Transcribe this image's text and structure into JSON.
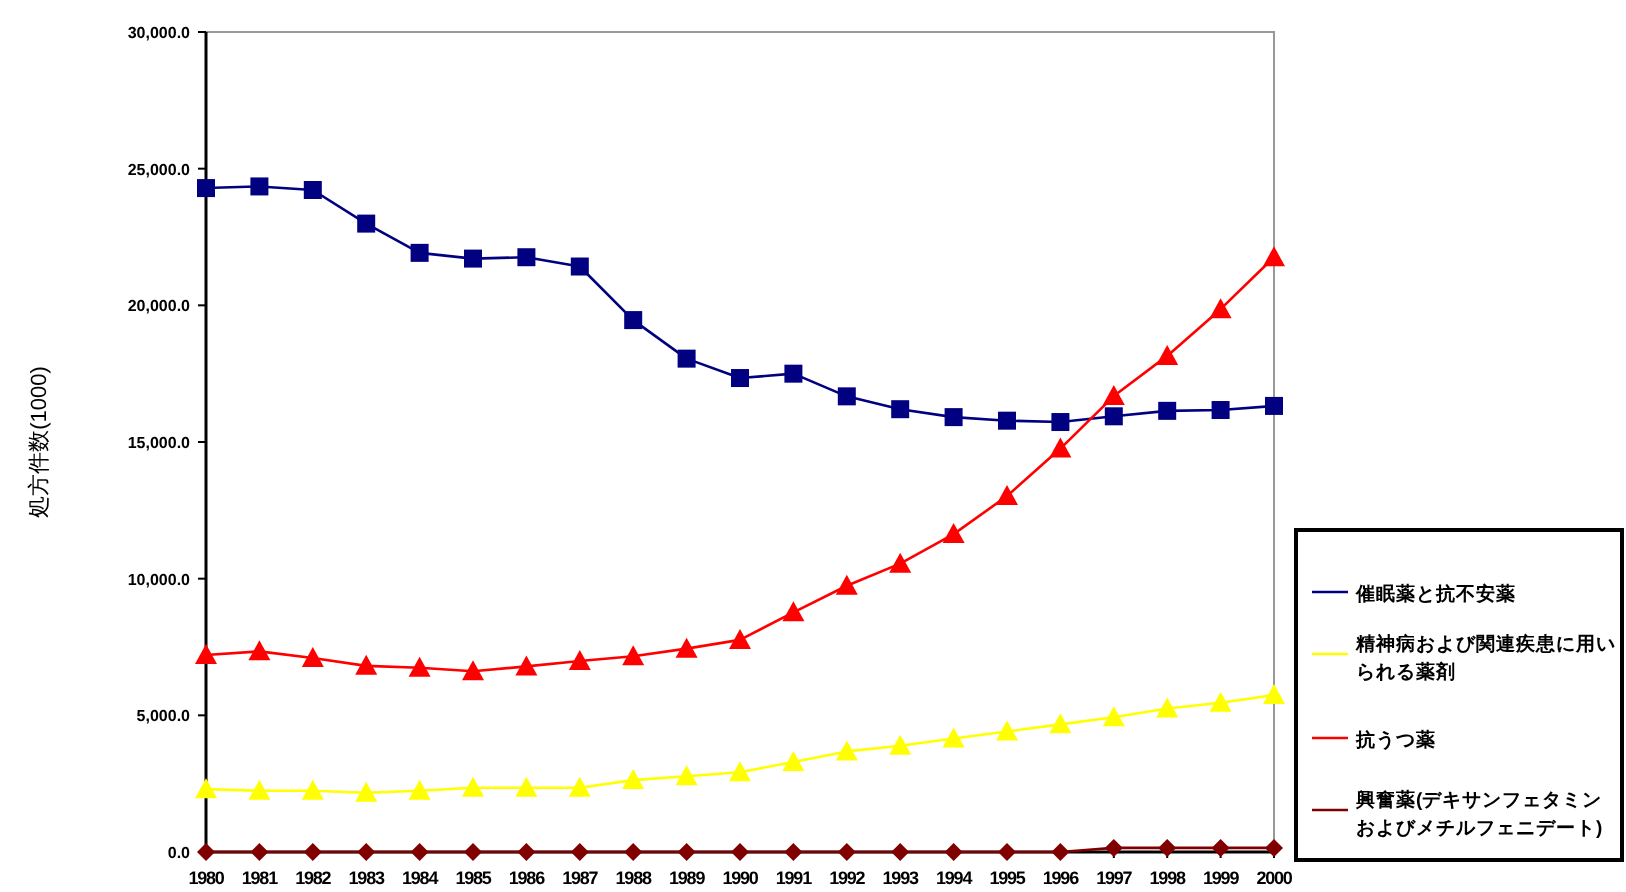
{
  "chart_data": {
    "type": "line",
    "ylabel": "処方件数(1000)",
    "categories": [
      "1980",
      "1981",
      "1982",
      "1983",
      "1984",
      "1985",
      "1986",
      "1987",
      "1988",
      "1989",
      "1990",
      "1991",
      "1992",
      "1993",
      "1994",
      "1995",
      "1996",
      "1997",
      "1998",
      "1999",
      "2000"
    ],
    "series": [
      {
        "name": "催眠薬と抗不安薬",
        "color": "#000080",
        "marker": "square",
        "values": [
          24290,
          24350,
          24220,
          22990,
          21920,
          21710,
          21760,
          21420,
          19460,
          18050,
          17340,
          17500,
          16670,
          16200,
          15910,
          15780,
          15730,
          15940,
          16140,
          16170,
          16320
        ]
      },
      {
        "name": "精神病および関連疾患に用いられる薬剤",
        "color": "#ffff00",
        "marker": "triangle",
        "values": [
          2300,
          2240,
          2240,
          2170,
          2240,
          2350,
          2350,
          2350,
          2630,
          2770,
          2920,
          3290,
          3680,
          3890,
          4150,
          4410,
          4670,
          4930,
          5250,
          5460,
          5740
        ]
      },
      {
        "name": "抗うつ薬",
        "color": "#ff0000",
        "marker": "triangle",
        "values": [
          7210,
          7340,
          7100,
          6810,
          6740,
          6610,
          6790,
          6990,
          7160,
          7440,
          7760,
          8770,
          9740,
          10550,
          11630,
          13020,
          14760,
          16680,
          18150,
          19860,
          21760
        ]
      },
      {
        "name": "興奮薬(デキサンフェタミンおよびメチルフェニデート)",
        "color": "#800000",
        "marker": "diamond",
        "values": [
          0,
          0,
          0,
          0,
          0,
          0,
          0,
          0,
          0,
          0,
          0,
          0,
          0,
          0,
          0,
          0,
          0,
          150,
          150,
          150,
          150
        ]
      }
    ],
    "ylim": [
      0,
      30000
    ],
    "yticks": [
      {
        "value": 0,
        "label": "0.0"
      },
      {
        "value": 5000,
        "label": "5,000.0"
      },
      {
        "value": 10000,
        "label": "10,000.0"
      },
      {
        "value": 15000,
        "label": "15,000.0"
      },
      {
        "value": 20000,
        "label": "20,000.0"
      },
      {
        "value": 25000,
        "label": "25,000.0"
      },
      {
        "value": 30000,
        "label": "30,000.0"
      }
    ],
    "grid": false,
    "legend": "right",
    "line_style": "solid"
  }
}
